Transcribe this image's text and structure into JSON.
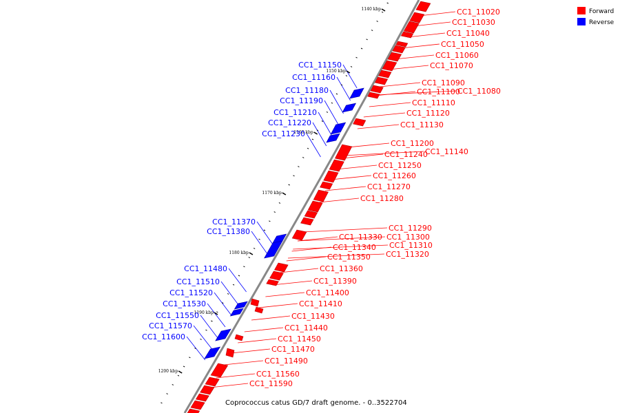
{
  "legend": {
    "forward": {
      "label": "Forward",
      "color": "#ff0000"
    },
    "reverse": {
      "label": "Reverse",
      "color": "#0000ff"
    }
  },
  "caption": "Coprococcus catus GD/7 draft genome. - 0..3522704",
  "backbone_color": "#888888",
  "kbp_ticks": [
    "1140 kbp",
    "1150 kbp",
    "1160 kbp",
    "1170 kbp",
    "1180 kbp",
    "1190 kbp",
    "1200 kbp"
  ],
  "forward_genes": [
    "CC1_11020",
    "CC1_11030",
    "CC1_11040",
    "CC1_11050",
    "CC1_11060",
    "CC1_11070",
    "CC1_11090",
    "CC1_11080",
    "CC1_11100",
    "CC1_11110",
    "CC1_11120",
    "CC1_11130",
    "CC1_11200",
    "CC1_11140",
    "CC1_11240",
    "CC1_11250",
    "CC1_11260",
    "CC1_11270",
    "CC1_11280",
    "CC1_11290",
    "CC1_11300",
    "CC1_11330",
    "CC1_11310",
    "CC1_11340",
    "CC1_11320",
    "CC1_11350",
    "CC1_11360",
    "CC1_11390",
    "CC1_11400",
    "CC1_11410",
    "CC1_11430",
    "CC1_11440",
    "CC1_11450",
    "CC1_11470",
    "CC1_11490",
    "CC1_11560",
    "CC1_11590"
  ],
  "reverse_genes": [
    "CC1_11150",
    "CC1_11160",
    "CC1_11180",
    "CC1_11190",
    "CC1_11210",
    "CC1_11220",
    "CC1_11230",
    "CC1_11370",
    "CC1_11380",
    "CC1_11480",
    "CC1_11510",
    "CC1_11520",
    "CC1_11530",
    "CC1_11550",
    "CC1_11570",
    "CC1_11600"
  ]
}
